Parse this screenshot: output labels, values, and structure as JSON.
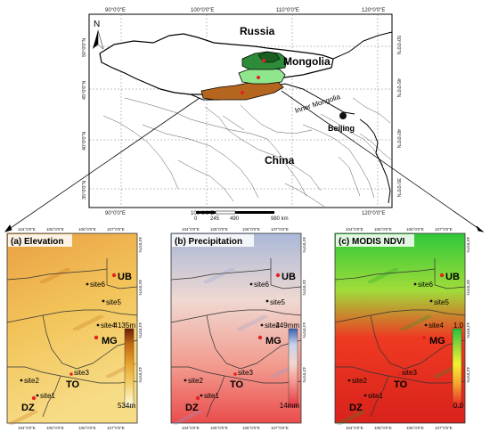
{
  "overview": {
    "countries": {
      "russia": "Russia",
      "mongolia": "Mongolia",
      "china": "China"
    },
    "regions": {
      "inner_mongolia": "Inner Mongolia",
      "beijing": "Beijing"
    },
    "north_arrow": "N",
    "lon_ticks": [
      "90°0'0\"E",
      "100°0'0\"E",
      "110°0'0\"E",
      "120°0'0\"E"
    ],
    "lat_ticks": [
      "50°0'0\"N",
      "45°0'0\"N",
      "40°0'0\"N",
      "35°0'0\"N"
    ],
    "scalebar": {
      "ticks": [
        "0",
        "245",
        "490",
        "980 km"
      ]
    }
  },
  "panels": [
    {
      "label": "(a) Elevation",
      "legend_max": "4135m",
      "legend_min": "534m",
      "colors": [
        "#fefee0",
        "#f6cf6a",
        "#e8a32e",
        "#c46a14",
        "#6a1e08"
      ]
    },
    {
      "label": "(b) Precipitation",
      "legend_max": "249mm",
      "legend_min": "14mm",
      "colors": [
        "#e8343c",
        "#f3908c",
        "#f3d6cc",
        "#c7d2ec",
        "#3a5fb4"
      ]
    },
    {
      "label": "(c) MODIS NDVI",
      "legend_max": "1.0",
      "legend_min": "0.0",
      "colors": [
        "#ee2222",
        "#f4a630",
        "#f4f22e",
        "#8bd63a",
        "#22c23a"
      ]
    }
  ],
  "panel_lon_ticks": [
    "104°0'0\"E",
    "105°0'0\"E",
    "106°0'0\"E",
    "107°0'0\"E"
  ],
  "panel_lat_ticks": [
    "46°0'0\"N",
    "45°0'0\"N",
    "44°0'0\"N",
    "43°0'0\"N"
  ],
  "sites": {
    "ub": "UB",
    "site6": "site6",
    "site5": "site5",
    "site4": "site4",
    "mg": "MG",
    "site3": "site3",
    "to": "TO",
    "site2": "site2",
    "site1": "site1",
    "dz": "DZ"
  }
}
